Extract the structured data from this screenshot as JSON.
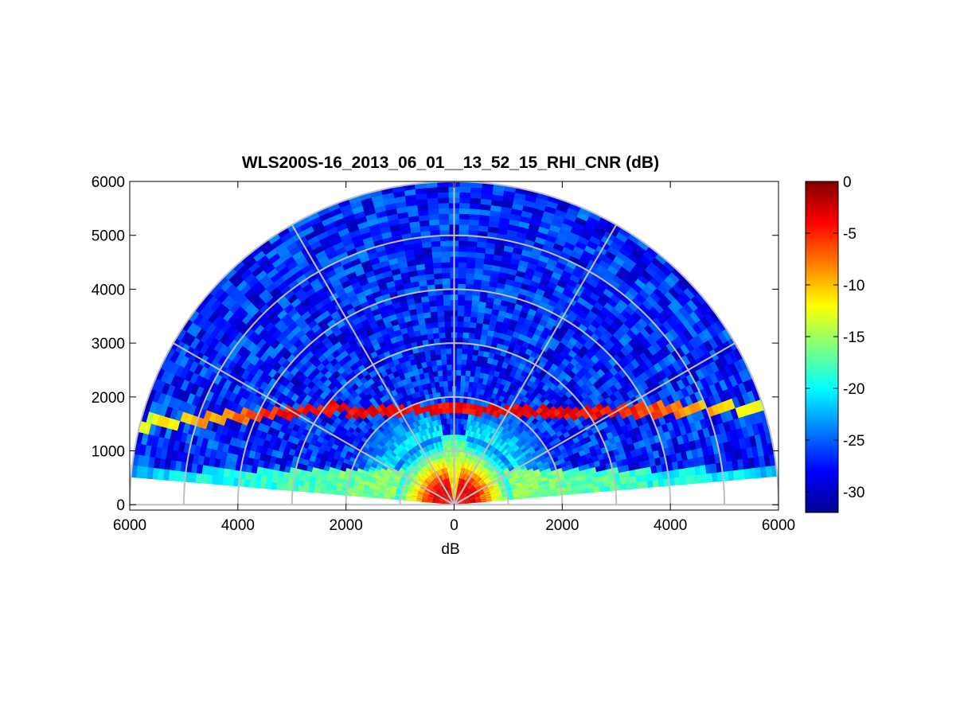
{
  "chart_data": {
    "type": "heatmap",
    "subtype": "polar-rhi-scan",
    "title": "WLS200S-16_2013_06_01__13_52_15_RHI_CNR (dB)",
    "xlabel": "dB",
    "ylabel": "",
    "xlim": [
      -6000,
      6000
    ],
    "ylim": [
      -100,
      6000
    ],
    "x_ticks": [
      -6000,
      -4000,
      -2000,
      0,
      2000,
      4000,
      6000
    ],
    "x_tick_labels": [
      "6000",
      "4000",
      "2000",
      "0",
      "2000",
      "4000",
      "6000"
    ],
    "y_ticks": [
      0,
      1000,
      2000,
      3000,
      4000,
      5000,
      6000
    ],
    "y_tick_labels": [
      "0",
      "1000",
      "2000",
      "3000",
      "4000",
      "5000",
      "6000"
    ],
    "range_max": 6000,
    "elevation_range_deg": [
      5,
      175
    ],
    "range_rings": [
      1000,
      2000,
      3000,
      4000,
      5000,
      6000
    ],
    "radial_spokes_deg": [
      30,
      60,
      90,
      120,
      150
    ],
    "grid": true,
    "colormap": "jet",
    "colorbar": {
      "location": "right",
      "min": -32,
      "max": 0,
      "ticks": [
        0,
        -5,
        -10,
        -15,
        -20,
        -25,
        -30
      ],
      "tick_labels": [
        "0",
        "-5",
        "-10",
        "-15",
        "-20",
        "-25",
        "-30"
      ]
    },
    "features": {
      "background_cnr_db": -27,
      "near_field": {
        "max_range": 1100,
        "cnr_db": -3
      },
      "boundary_layer_band": {
        "height_mid": 1800,
        "height_edge": 1700,
        "height_left_edge": 1500,
        "cnr_db": -4
      },
      "low_elevation_layer": {
        "height": 500,
        "cnr_db": -14
      }
    }
  }
}
